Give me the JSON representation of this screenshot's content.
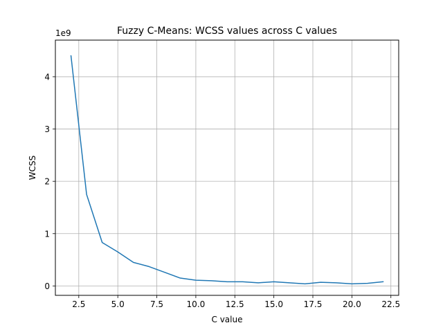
{
  "chart_data": {
    "type": "line",
    "title": "Fuzzy C-Means: WCSS values across C values",
    "xlabel": "C value",
    "ylabel": "WCSS",
    "y_offset_label": "1e9",
    "xlim": [
      1.0,
      23.0
    ],
    "ylim": [
      -0.18,
      4.7
    ],
    "x_ticks": [
      2.5,
      5.0,
      7.5,
      10.0,
      12.5,
      15.0,
      17.5,
      20.0,
      22.5
    ],
    "x_tick_labels": [
      "2.5",
      "5.0",
      "7.5",
      "10.0",
      "12.5",
      "15.0",
      "17.5",
      "20.0",
      "22.5"
    ],
    "y_ticks": [
      0,
      1,
      2,
      3,
      4
    ],
    "y_tick_labels": [
      "0",
      "1",
      "2",
      "3",
      "4"
    ],
    "grid": true,
    "line_color": "#1f77b4",
    "series": [
      {
        "x": [
          2,
          3,
          4,
          5,
          6,
          7,
          8,
          9,
          10,
          11,
          12,
          13,
          14,
          15,
          16,
          17,
          18,
          19,
          20,
          21,
          22
        ],
        "values": [
          4.4,
          1.75,
          0.83,
          0.65,
          0.45,
          0.37,
          0.26,
          0.15,
          0.11,
          0.1,
          0.08,
          0.08,
          0.06,
          0.08,
          0.06,
          0.04,
          0.07,
          0.06,
          0.04,
          0.05,
          0.08
        ]
      }
    ]
  }
}
